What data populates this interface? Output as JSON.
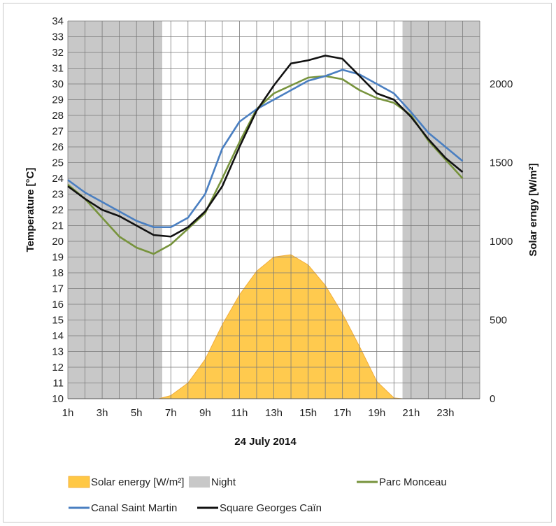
{
  "chart_data": {
    "type": "line",
    "xlabel": "24 July 2014",
    "ylabel": "Temperature [°C]",
    "y2label": "Solar erngy [W/m²]",
    "ylim": [
      10,
      34
    ],
    "y2lim": [
      0,
      2400
    ],
    "x_range": [
      1,
      25
    ],
    "x_ticks": [
      "1h",
      "3h",
      "5h",
      "7h",
      "9h",
      "11h",
      "13h",
      "15h",
      "17h",
      "19h",
      "21h",
      "23h"
    ],
    "x_tick_hours": [
      1,
      3,
      5,
      7,
      9,
      11,
      13,
      15,
      17,
      19,
      21,
      23
    ],
    "y_ticks": [
      10,
      11,
      12,
      13,
      14,
      15,
      16,
      17,
      18,
      19,
      20,
      21,
      22,
      23,
      24,
      25,
      26,
      27,
      28,
      29,
      30,
      31,
      32,
      33,
      34
    ],
    "y2_ticks": [
      0,
      500,
      1000,
      1500,
      2000
    ],
    "grid": true,
    "legend_position": "bottom",
    "night_bands": [
      [
        1,
        6.5
      ],
      [
        20.5,
        25
      ]
    ],
    "hours": [
      1,
      2,
      3,
      4,
      5,
      6,
      7,
      8,
      9,
      10,
      11,
      12,
      13,
      14,
      15,
      16,
      17,
      18,
      19,
      20,
      21,
      22,
      23,
      24
    ],
    "series": [
      {
        "name": "Parc Monceau",
        "color": "#77933c",
        "axis": "left",
        "values": [
          23.6,
          22.7,
          21.5,
          20.3,
          19.6,
          19.2,
          19.8,
          20.8,
          21.8,
          24.0,
          26.3,
          28.4,
          29.4,
          29.9,
          30.4,
          30.5,
          30.3,
          29.6,
          29.1,
          28.8,
          28.0,
          26.4,
          25.2,
          24.0
        ]
      },
      {
        "name": "Canal Saint Martin",
        "color": "#4a7fc1",
        "axis": "left",
        "values": [
          23.9,
          23.1,
          22.5,
          21.9,
          21.3,
          20.9,
          20.9,
          21.5,
          23.0,
          25.9,
          27.6,
          28.4,
          29.0,
          29.6,
          30.2,
          30.5,
          30.9,
          30.6,
          30.0,
          29.4,
          28.2,
          26.9,
          26.0,
          25.1
        ]
      },
      {
        "name": "Square Georges Caïn",
        "color": "#111111",
        "axis": "left",
        "values": [
          23.5,
          22.7,
          22.0,
          21.6,
          21.0,
          20.4,
          20.3,
          20.9,
          21.9,
          23.5,
          26.0,
          28.3,
          29.9,
          31.3,
          31.5,
          31.8,
          31.6,
          30.5,
          29.4,
          29.0,
          27.9,
          26.5,
          25.3,
          24.4
        ]
      },
      {
        "name": "Solar energy [W/m²]",
        "color": "#ffc845",
        "axis": "right",
        "type": "area",
        "x": [
          6.3,
          7,
          8,
          9,
          10,
          11,
          12,
          13,
          14,
          15,
          16,
          17,
          18,
          19,
          20,
          20.5
        ],
        "values": [
          0,
          20,
          100,
          250,
          470,
          660,
          810,
          900,
          915,
          850,
          720,
          540,
          330,
          110,
          5,
          0
        ]
      }
    ],
    "legend": [
      {
        "label": "Solar energy [W/m²]",
        "swatch": "area",
        "color": "#ffc845"
      },
      {
        "label": "Night",
        "swatch": "area",
        "color": "#c8c8c8"
      },
      {
        "label": "Parc Monceau",
        "swatch": "line",
        "color": "#77933c"
      },
      {
        "label": "Canal Saint Martin",
        "swatch": "line",
        "color": "#4a7fc1"
      },
      {
        "label": "Square Georges Caïn",
        "swatch": "line",
        "color": "#111111"
      }
    ],
    "colors": {
      "night": "#c8c8c8",
      "solar_fill": "#ffc845",
      "solar_stroke": "#f0a830",
      "grid": "#7a7a7a"
    }
  }
}
